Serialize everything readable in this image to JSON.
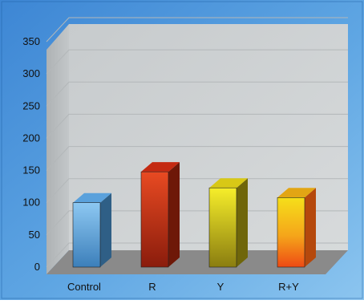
{
  "chart_data": {
    "type": "bar",
    "categories": [
      "Control",
      "R",
      "Y",
      "R+Y"
    ],
    "values": [
      100,
      148,
      123,
      108
    ],
    "ylim": [
      0,
      350
    ],
    "yticks": [
      "0",
      "50",
      "100",
      "150",
      "200",
      "250",
      "300",
      "350"
    ],
    "grid": true,
    "title": "",
    "xlabel": "",
    "ylabel": "",
    "colors": {
      "Control": "#6fb3e8",
      "R": "#d8361a",
      "Y": "#e8dc1c",
      "R+Y": "#f5a21a",
      "background": "#4f97db",
      "wall": "#cdd1d3",
      "floor": "#8a8a8a"
    }
  }
}
